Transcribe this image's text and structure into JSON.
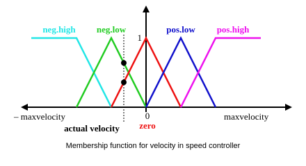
{
  "functions": [
    {
      "label": "neg.high",
      "color": "#22e6e6"
    },
    {
      "label": "neg.low",
      "color": "#22cc22"
    },
    {
      "label": "zero",
      "color": "#ee1111"
    },
    {
      "label": "pos.low",
      "color": "#1111cc"
    },
    {
      "label": "pos.high",
      "color": "#ee11ee"
    }
  ],
  "axis": {
    "peak_label": "1",
    "origin_label": "0",
    "min_label": "– maxvelocity",
    "max_label": "maxvelocity"
  },
  "marker_label": "actual velocity",
  "caption": "Membership function for velocity in speed controller"
}
